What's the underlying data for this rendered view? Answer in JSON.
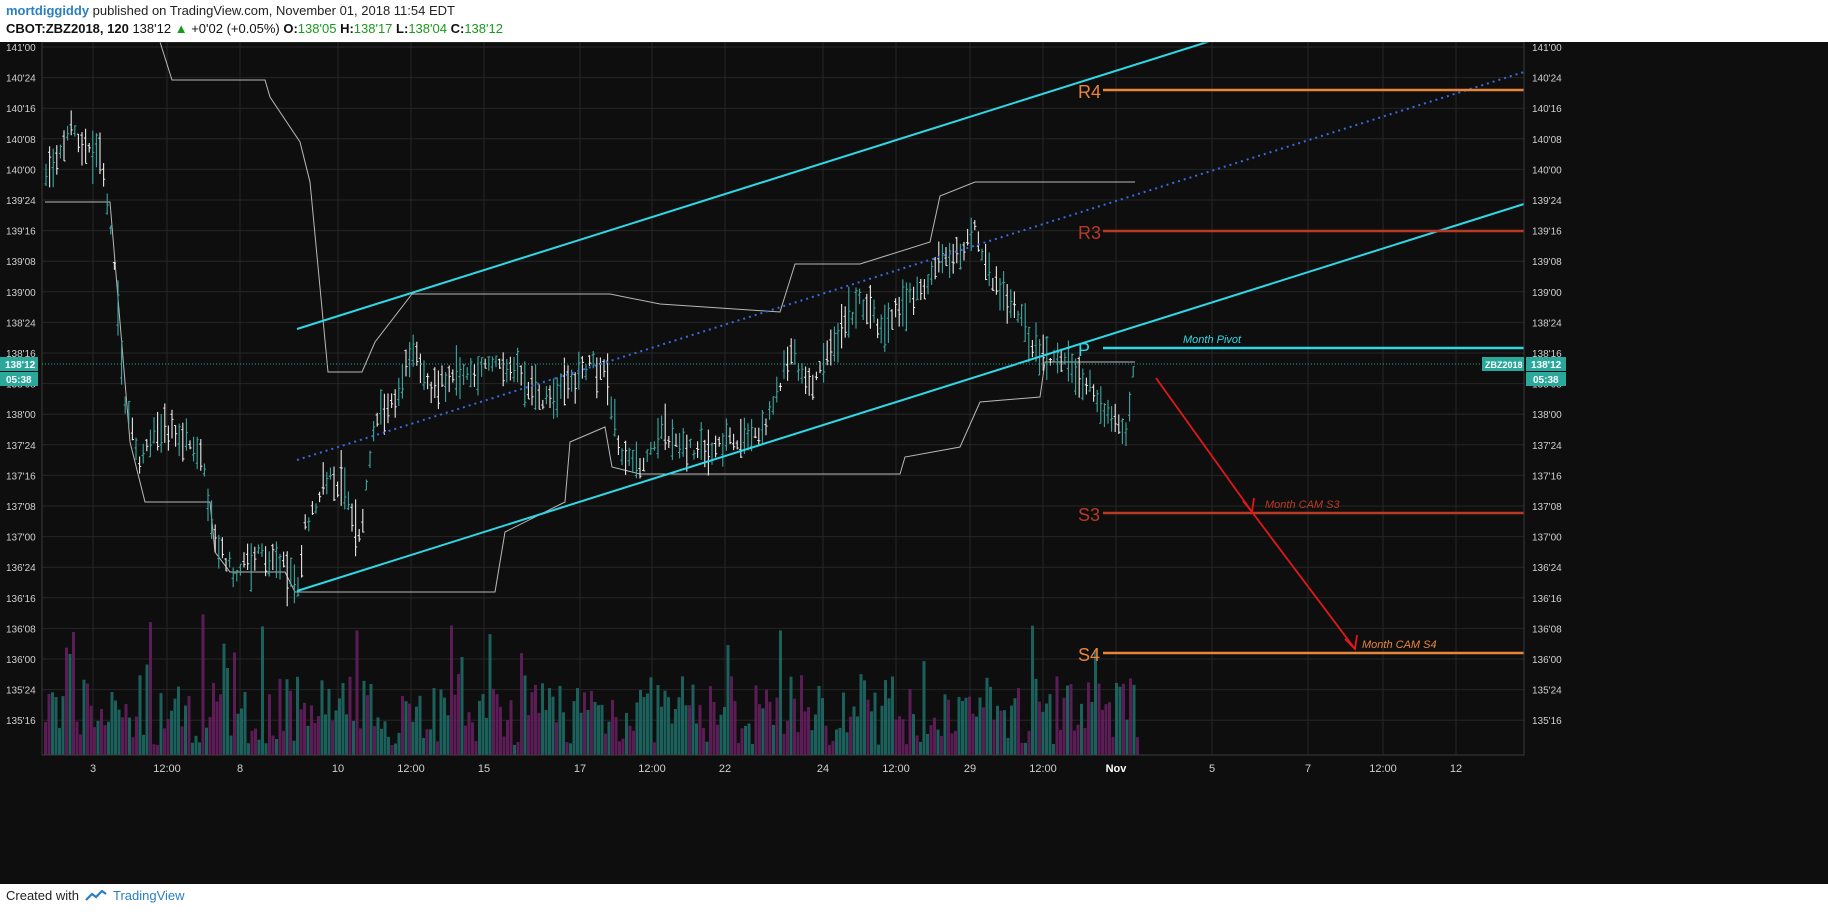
{
  "header": {
    "author": "mortdiggiddy",
    "published_text": "published on TradingView.com, November 01, 2018 11:54 EDT",
    "symbol": "CBOT:ZBZ2018, 120",
    "last": "138'12",
    "change": "+0'02 (+0.05%)",
    "o_label": "O:",
    "o_value": "138'05",
    "h_label": "H:",
    "h_value": "138'17",
    "l_label": "L:",
    "l_value": "138'04",
    "c_label": "C:",
    "c_value": "138'12"
  },
  "footer": {
    "created_with": "Created with",
    "brand": "TradingView"
  },
  "colors": {
    "background": "#0e0e0e",
    "grid": "#262626",
    "channel": "#2fd8e6",
    "r4s4": "#e8853a",
    "r3s3": "#b83a26",
    "arrow": "#e01818",
    "bar": "#e8e8e8",
    "bar_teal": "#3aa8a0",
    "vol_teal": "#1f6e6a",
    "vol_purple": "#6a1f62",
    "donchian": "#b8b8b8",
    "axis_text": "#d0d0d0",
    "price_tag": "#2aa89c"
  },
  "chart_data": {
    "type": "bar",
    "y_ticks": [
      "141'00",
      "140'24",
      "140'16",
      "140'08",
      "140'00",
      "139'24",
      "139'16",
      "139'08",
      "139'00",
      "138'24",
      "138'16",
      "138'08",
      "138'00",
      "137'24",
      "137'16",
      "137'08",
      "137'00",
      "136'24",
      "136'16",
      "136'08",
      "136'00",
      "135'24",
      "135'16"
    ],
    "ylim": [
      "135'08",
      "141'00"
    ],
    "x_ticks": [
      "3",
      "12:00",
      "8",
      "10",
      "12:00",
      "15",
      "17",
      "12:00",
      "22",
      "24",
      "12:00",
      "29",
      "12:00",
      "Nov",
      "5",
      "7",
      "12:00",
      "12"
    ],
    "last_price_label": "138'12",
    "countdown_label": "05:38",
    "symbol_tag": "ZBZ2018",
    "levels": [
      {
        "name": "R4",
        "price": "140'19"
      },
      {
        "name": "R3",
        "price": "139'15"
      },
      {
        "name": "P",
        "price": "138'15",
        "label": "Month Pivot"
      },
      {
        "name": "S3",
        "price": "137'03",
        "label": "Month CAM S3"
      },
      {
        "name": "S4",
        "price": "135'31",
        "label": "Month CAM S4"
      }
    ],
    "ohlc_approx": [
      {
        "t": "Oct 2",
        "close": "140'08"
      },
      {
        "t": "Oct 3",
        "close": "138'04"
      },
      {
        "t": "Oct 5",
        "close": "137'16"
      },
      {
        "t": "Oct 8",
        "close": "136'24"
      },
      {
        "t": "Oct 9",
        "close": "136'16"
      },
      {
        "t": "Oct 10",
        "close": "137'16"
      },
      {
        "t": "Oct 11",
        "close": "138'16"
      },
      {
        "t": "Oct 12",
        "close": "138'04"
      },
      {
        "t": "Oct 15",
        "close": "138'12"
      },
      {
        "t": "Oct 17",
        "close": "138'12"
      },
      {
        "t": "Oct 18",
        "close": "137'16"
      },
      {
        "t": "Oct 22",
        "close": "137'24"
      },
      {
        "t": "Oct 23",
        "close": "138'00"
      },
      {
        "t": "Oct 24",
        "close": "138'20"
      },
      {
        "t": "Oct 25",
        "close": "138'24"
      },
      {
        "t": "Oct 26",
        "close": "139'04"
      },
      {
        "t": "Oct 29",
        "close": "139'08"
      },
      {
        "t": "Oct 30",
        "close": "138'24"
      },
      {
        "t": "Oct 31",
        "close": "138'00"
      },
      {
        "t": "Nov 1",
        "close": "138'12"
      }
    ]
  }
}
